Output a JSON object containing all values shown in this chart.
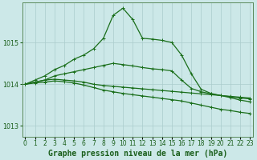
{
  "title": "Graphe pression niveau de la mer (hPa)",
  "xlabel_ticks": [
    0,
    1,
    2,
    3,
    4,
    5,
    6,
    7,
    8,
    9,
    10,
    11,
    12,
    13,
    14,
    15,
    16,
    17,
    18,
    19,
    20,
    21,
    22,
    23
  ],
  "ylim": [
    1012.75,
    1015.95
  ],
  "yticks": [
    1013,
    1014,
    1015
  ],
  "background_color": "#cce8e8",
  "grid_color": "#aacccc",
  "line_color": "#1a6e1a",
  "lines": [
    [
      1014.0,
      1014.05,
      1014.1,
      1014.12,
      1014.1,
      1014.08,
      1014.05,
      1014.0,
      1013.97,
      1013.95,
      1013.93,
      1013.91,
      1013.89,
      1013.87,
      1013.85,
      1013.83,
      1013.81,
      1013.79,
      1013.77,
      1013.75,
      1013.73,
      1013.71,
      1013.69,
      1013.67
    ],
    [
      1014.0,
      1014.03,
      1014.05,
      1014.08,
      1014.06,
      1014.03,
      1013.98,
      1013.92,
      1013.86,
      1013.82,
      1013.78,
      1013.75,
      1013.72,
      1013.69,
      1013.66,
      1013.63,
      1013.6,
      1013.55,
      1013.5,
      1013.45,
      1013.4,
      1013.37,
      1013.33,
      1013.3
    ],
    [
      1014.0,
      1014.05,
      1014.1,
      1014.2,
      1014.25,
      1014.3,
      1014.35,
      1014.4,
      1014.45,
      1014.5,
      1014.47,
      1014.44,
      1014.4,
      1014.37,
      1014.35,
      1014.32,
      1014.1,
      1013.9,
      1013.82,
      1013.77,
      1013.73,
      1013.7,
      1013.67,
      1013.65
    ],
    [
      1014.0,
      1014.1,
      1014.2,
      1014.35,
      1014.45,
      1014.6,
      1014.7,
      1014.85,
      1015.1,
      1015.65,
      1015.82,
      1015.55,
      1015.1,
      1015.08,
      1015.05,
      1015.0,
      1014.7,
      1014.25,
      1013.88,
      1013.78,
      1013.73,
      1013.68,
      1013.62,
      1013.58
    ]
  ],
  "marker": "+",
  "marker_size": 3.5,
  "linewidth": 0.9,
  "font_color": "#1a5e1a",
  "title_fontsize": 7.0,
  "tick_fontsize": 5.8,
  "figsize": [
    3.2,
    2.0
  ],
  "dpi": 100
}
